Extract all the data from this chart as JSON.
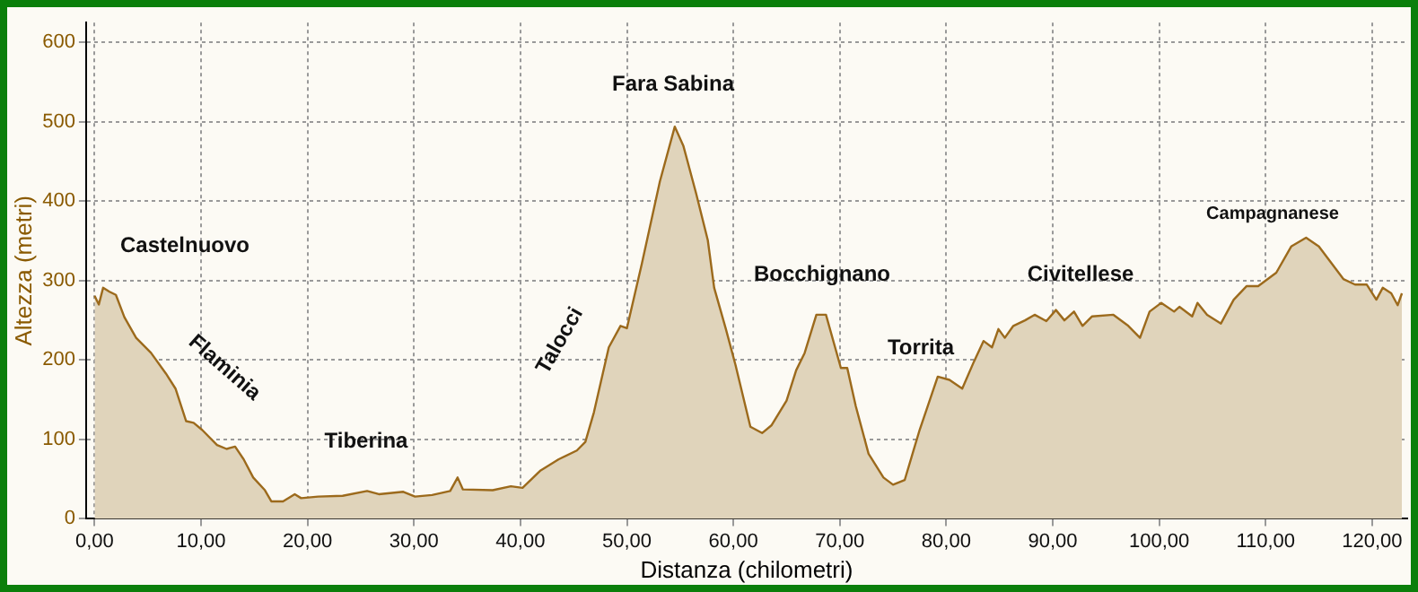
{
  "chart_data": {
    "type": "area",
    "xlabel": "Distanza (chilometri)",
    "ylabel": "Altezza (metri)",
    "x": [
      0,
      0.4,
      0.8,
      1.4,
      2,
      2.8,
      3.9,
      5.3,
      6.7,
      7.6,
      8.6,
      9.3,
      10.1,
      11.5,
      12.4,
      13.2,
      14,
      14.9,
      16,
      16.6,
      17.7,
      18.8,
      19.4,
      21,
      23.3,
      25.6,
      26.7,
      29,
      30.1,
      31.7,
      33.4,
      34.1,
      34.6,
      37.4,
      39.1,
      40.2,
      41.9,
      43.6,
      45.3,
      46.1,
      46.9,
      48.3,
      49.4,
      50,
      51.4,
      53.1,
      54.5,
      55.3,
      56.5,
      57.6,
      58.2,
      59.3,
      60.2,
      61.6,
      62.7,
      63.6,
      65,
      65.9,
      66.7,
      67.8,
      68.7,
      70.1,
      70.7,
      71.5,
      72.7,
      74.1,
      75,
      76.1,
      77.5,
      79.2,
      80.3,
      81.5,
      82.6,
      83.5,
      84.3,
      84.9,
      85.5,
      86.3,
      87.4,
      88.3,
      89.4,
      90.3,
      91.1,
      92,
      92.8,
      93.7,
      95.7,
      97.1,
      98.2,
      99.1,
      100.2,
      101.4,
      101.9,
      103.1,
      103.6,
      104.5,
      105.8,
      107,
      108.2,
      109.3,
      111,
      112.4,
      113.8,
      115,
      117.3,
      118.4,
      119.5,
      120.4,
      121,
      121.8,
      122.4,
      122.8
    ],
    "series": [
      {
        "color": "#9c6a1c",
        "values": [
          281,
          270,
          291,
          286,
          282,
          254,
          228,
          209,
          183,
          164,
          123,
          121,
          112,
          93,
          88,
          91,
          75,
          52,
          36,
          22,
          22,
          31,
          26,
          28,
          29,
          35,
          31,
          34,
          28,
          30,
          35,
          52,
          37,
          36,
          41,
          39,
          61,
          75,
          86,
          97,
          134,
          216,
          243,
          240,
          321,
          425,
          494,
          470,
          410,
          351,
          291,
          239,
          194,
          116,
          108,
          118,
          149,
          187,
          209,
          257,
          257,
          190,
          190,
          142,
          82,
          52,
          43,
          49,
          112,
          179,
          175,
          164,
          198,
          224,
          216,
          239,
          228,
          243,
          250,
          257,
          249,
          263,
          250,
          261,
          243,
          255,
          257,
          243,
          228,
          261,
          272,
          261,
          267,
          255,
          272,
          257,
          246,
          276,
          293,
          293,
          310,
          343,
          354,
          343,
          302,
          295,
          295,
          276,
          291,
          284,
          269,
          284
        ]
      }
    ],
    "xlim": [
      -0.8,
      123.3
    ],
    "ylim": [
      0,
      625
    ],
    "xticks": [
      {
        "value": 0,
        "label": "0,00"
      },
      {
        "value": 10,
        "label": "10,00"
      },
      {
        "value": 20,
        "label": "20,00"
      },
      {
        "value": 30,
        "label": "30,00"
      },
      {
        "value": 40,
        "label": "40,00"
      },
      {
        "value": 50,
        "label": "50,00"
      },
      {
        "value": 60,
        "label": "60,00"
      },
      {
        "value": 70,
        "label": "70,00"
      },
      {
        "value": 80,
        "label": "80,00"
      },
      {
        "value": 90,
        "label": "90,00"
      },
      {
        "value": 100,
        "label": "100,00"
      },
      {
        "value": 110,
        "label": "110,00"
      },
      {
        "value": 120,
        "label": "120,00"
      }
    ],
    "yticks": [
      0,
      100,
      200,
      300,
      400,
      500,
      600
    ],
    "grid": true,
    "marker": "none",
    "line_style": "solid",
    "legend": false,
    "annotations": [
      "Castelnuovo",
      "Flaminia",
      "Tiberina",
      "Talocci",
      "Fara Sabina",
      "Bocchignano",
      "Torrita",
      "Civitellese",
      "Campagnanese"
    ]
  }
}
